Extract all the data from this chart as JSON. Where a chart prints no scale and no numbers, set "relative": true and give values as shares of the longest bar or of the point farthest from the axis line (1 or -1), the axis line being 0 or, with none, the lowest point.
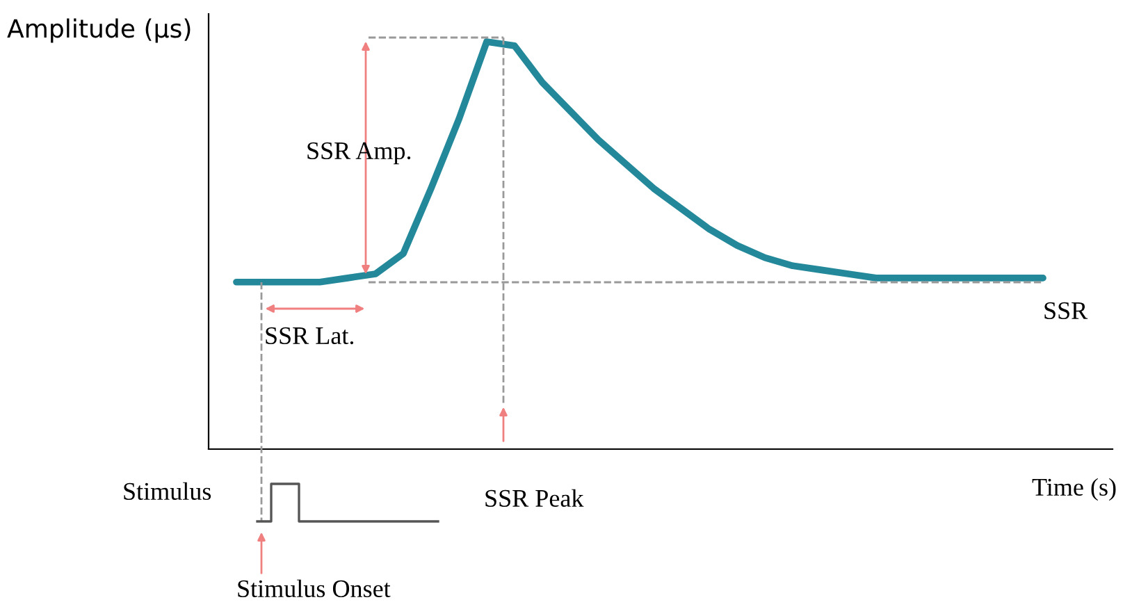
{
  "chart_data": {
    "type": "line",
    "relative": true,
    "xlabel": "Time (s)",
    "ylabel": "Amplitude (µs)",
    "categories": [
      null,
      null,
      null,
      null,
      null,
      null,
      null,
      null,
      null,
      null,
      null,
      null,
      null,
      null,
      null,
      null,
      null,
      null,
      null,
      null,
      null,
      null,
      null,
      null,
      null,
      null,
      null,
      null,
      null,
      null
    ],
    "series": [
      {
        "color": "#23899a",
        "values": [
          0.41,
          0.41,
          0.41,
          0.41,
          0.42,
          0.43,
          0.48,
          0.64,
          0.81,
          1.0,
          0.99,
          0.9,
          0.83,
          0.76,
          0.7,
          0.64,
          0.59,
          0.54,
          0.5,
          0.47,
          0.45,
          0.44,
          0.43,
          0.42,
          0.42,
          0.42,
          0.42,
          0.42,
          0.42,
          0.42
        ]
      }
    ],
    "annotations": [
      "SSR Amp.",
      "SSR Lat.",
      "SSR",
      "Stimulus",
      "SSR Peak",
      "Stimulus Onset"
    ],
    "grid": false,
    "legend": false,
    "marker": "none",
    "line_style": "solid"
  }
}
